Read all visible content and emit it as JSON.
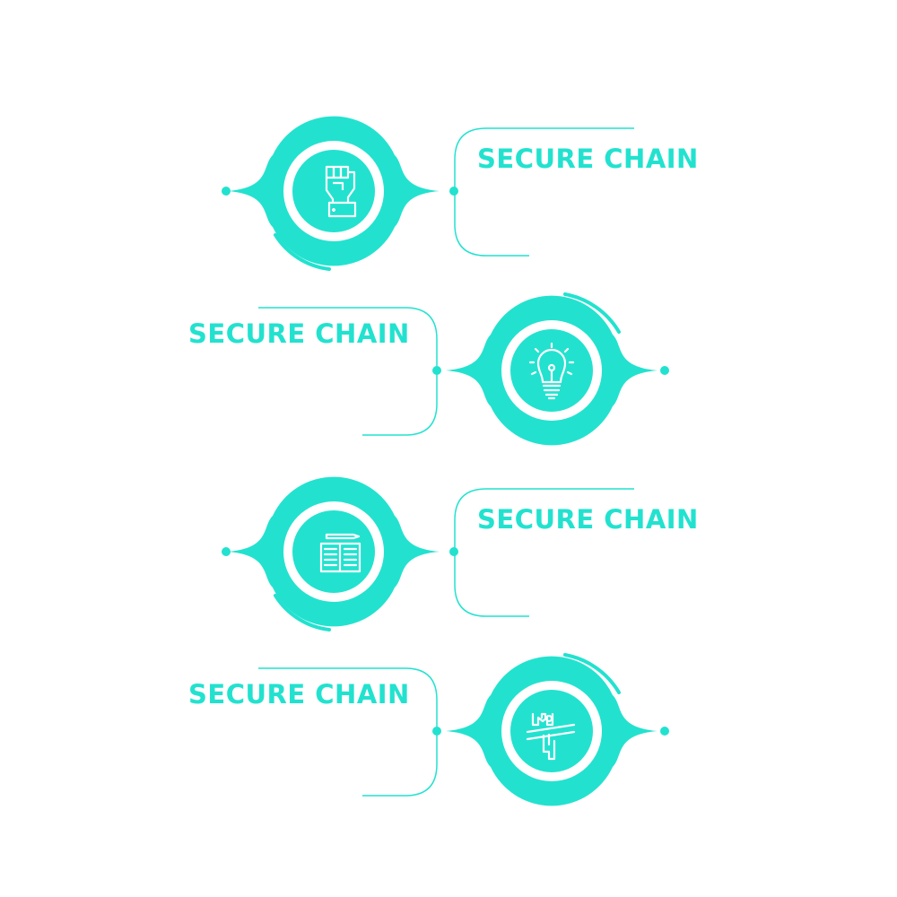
{
  "colors": {
    "accent": "#22e2cf",
    "background": "#ffffff"
  },
  "steps": [
    {
      "title": "SECURE CHAIN",
      "icon": "raised-fist-icon"
    },
    {
      "title": "SECURE CHAIN",
      "icon": "light-bulb-icon"
    },
    {
      "title": "SECURE CHAIN",
      "icon": "open-book-pencil-icon"
    },
    {
      "title": "SECURE CHAIN",
      "icon": "finish-line-runner-icon"
    }
  ]
}
